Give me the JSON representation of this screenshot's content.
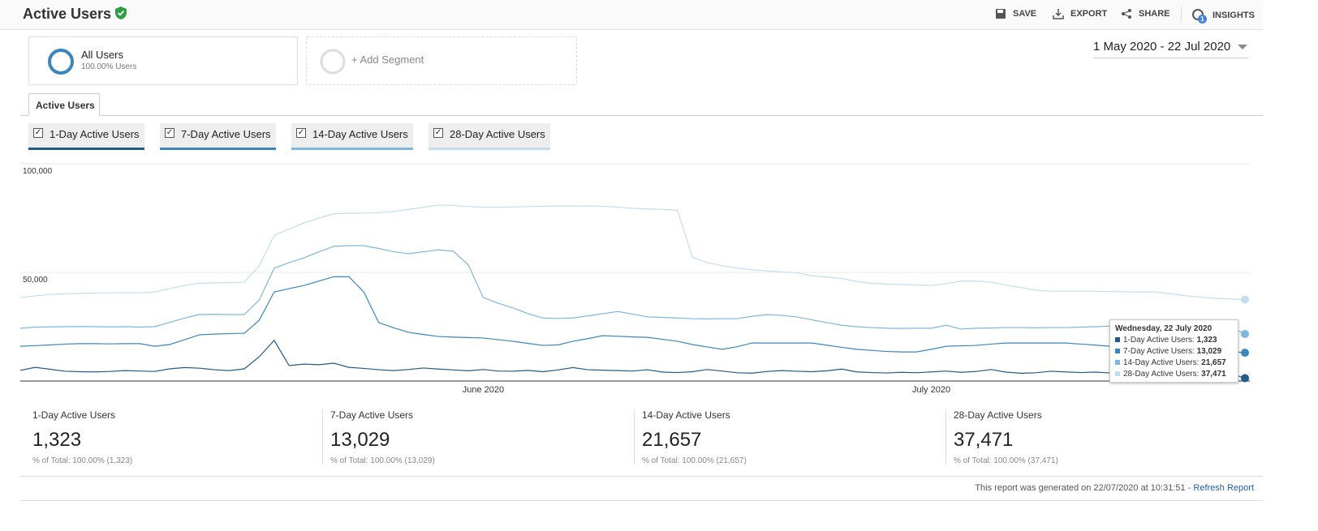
{
  "header": {
    "title": "Active Users",
    "actions": [
      "SAVE",
      "EXPORT",
      "SHARE",
      "INSIGHTS"
    ],
    "insights_badge": "1"
  },
  "segments": {
    "active": {
      "name": "All Users",
      "detail": "100.00% Users"
    },
    "add": "+ Add Segment"
  },
  "date_range": "1 May 2020 - 22 Jul 2020",
  "tab": "Active Users",
  "chart_data": {
    "type": "line",
    "categories": [
      null,
      null,
      null,
      null,
      null,
      null,
      null,
      null,
      null,
      null,
      null,
      null,
      null,
      null,
      null,
      null,
      null,
      null,
      null,
      null,
      null,
      null,
      null,
      null,
      null,
      null,
      null,
      null,
      null,
      null,
      null,
      "June 2020",
      null,
      null,
      null,
      null,
      null,
      null,
      null,
      null,
      null,
      null,
      null,
      null,
      null,
      null,
      null,
      null,
      null,
      null,
      null,
      null,
      null,
      null,
      null,
      null,
      null,
      null,
      null,
      null,
      null,
      "July 2020",
      null,
      null,
      null,
      null,
      null,
      null,
      null,
      null,
      null,
      null,
      null,
      null,
      null,
      null,
      null,
      null,
      null,
      null,
      null,
      null,
      null
    ],
    "ylim": [
      0,
      100000
    ],
    "yticks": [
      {
        "value": 50000,
        "label": "50,000"
      },
      {
        "value": 100000,
        "label": "100,000"
      }
    ],
    "grid": true,
    "series": [
      {
        "name": "1-Day Active Users",
        "color": "#245a87",
        "values": [
          4900,
          6300,
          5400,
          4500,
          4300,
          4200,
          4400,
          4800,
          4600,
          4400,
          5600,
          6200,
          5900,
          5200,
          4800,
          5600,
          11200,
          18700,
          7100,
          7800,
          7500,
          8200,
          6300,
          5800,
          5200,
          4800,
          5300,
          6000,
          5500,
          5100,
          4700,
          5300,
          4600,
          4500,
          4900,
          4300,
          5100,
          6200,
          5200,
          5000,
          4800,
          4600,
          5200,
          4100,
          3900,
          4300,
          5300,
          4600,
          3800,
          3600,
          4400,
          4800,
          4500,
          4300,
          4700,
          5500,
          4200,
          3900,
          3700,
          4000,
          3800,
          4200,
          4600,
          4000,
          4400,
          5300,
          4100,
          3600,
          3800,
          4500,
          4200,
          3900,
          4100,
          3700,
          3900,
          4300,
          4000,
          3800,
          3600,
          4100,
          3800,
          3500,
          1323
        ]
      },
      {
        "name": "7-Day Active Users",
        "color": "#3a86bd",
        "values": [
          16000,
          16300,
          16600,
          17000,
          17200,
          17200,
          17100,
          17200,
          17200,
          16000,
          16800,
          19000,
          21300,
          21600,
          21800,
          22000,
          28000,
          41000,
          42500,
          44000,
          46000,
          48000,
          48000,
          41000,
          26900,
          24500,
          22400,
          21400,
          20500,
          20200,
          20000,
          19800,
          19000,
          18300,
          17300,
          16400,
          16600,
          18300,
          19500,
          20900,
          20600,
          20300,
          20100,
          19200,
          18300,
          16800,
          15700,
          14600,
          15800,
          17500,
          17500,
          17500,
          17500,
          17500,
          16500,
          15500,
          14600,
          14100,
          13600,
          13400,
          13400,
          14600,
          16000,
          16200,
          16400,
          17000,
          17500,
          17500,
          17500,
          17500,
          17500,
          17000,
          16500,
          16000,
          15700,
          15400,
          15100,
          14900,
          14600,
          14300,
          14000,
          13700,
          13029
        ]
      },
      {
        "name": "14-Day Active Users",
        "color": "#7fb6de",
        "values": [
          24300,
          24800,
          24900,
          25000,
          25100,
          25000,
          24900,
          25000,
          24800,
          25000,
          27000,
          29000,
          30600,
          30700,
          30600,
          30600,
          37300,
          51900,
          54500,
          56700,
          59500,
          62000,
          62300,
          62300,
          61000,
          59500,
          58600,
          59500,
          60400,
          59700,
          53400,
          38400,
          35800,
          33600,
          31000,
          29000,
          28800,
          29000,
          30000,
          31000,
          32000,
          30800,
          29500,
          29300,
          29000,
          28700,
          28600,
          28700,
          28700,
          29800,
          30600,
          30200,
          29500,
          28200,
          26900,
          25700,
          25000,
          24600,
          24300,
          24200,
          24300,
          24300,
          25700,
          23900,
          24300,
          24400,
          24600,
          24600,
          24500,
          24600,
          24600,
          24800,
          25000,
          25300,
          25500,
          26000,
          26300,
          26500,
          26800,
          27200,
          27600,
          25000,
          21657
        ]
      },
      {
        "name": "28-Day Active Users",
        "color": "#c3def1",
        "values": [
          38400,
          39200,
          39800,
          40100,
          40300,
          40500,
          40600,
          40700,
          40600,
          41000,
          42500,
          44000,
          45000,
          45200,
          45300,
          45500,
          53000,
          67000,
          70000,
          72800,
          75000,
          77000,
          77200,
          77300,
          77500,
          78000,
          79000,
          80000,
          81000,
          80800,
          80300,
          80000,
          80000,
          80100,
          80300,
          80400,
          80600,
          80500,
          80600,
          80400,
          80000,
          79500,
          79200,
          79000,
          78600,
          57000,
          54500,
          53000,
          52000,
          51200,
          50700,
          50200,
          49800,
          48500,
          47800,
          47200,
          45800,
          45000,
          44600,
          44400,
          44200,
          44000,
          44800,
          46000,
          46000,
          45500,
          44200,
          43000,
          41800,
          41400,
          41300,
          41300,
          41300,
          41200,
          41100,
          41000,
          41000,
          40200,
          39300,
          38600,
          38000,
          37800,
          37471
        ]
      }
    ]
  },
  "tooltip": {
    "title": "Wednesday, 22 July 2020",
    "values": [
      "1,323",
      "13,029",
      "21,657",
      "37,471"
    ]
  },
  "scorecards": [
    {
      "value": "1,323",
      "total_label": "% of Total:",
      "total": "100.00% (1,323)"
    },
    {
      "value": "13,029",
      "total_label": "% of Total:",
      "total": "100.00% (13,029)"
    },
    {
      "value": "21,657",
      "total_label": "% of Total:",
      "total": "100.00% (21,657)"
    },
    {
      "value": "37,471",
      "total_label": "% of Total:",
      "total": "100.00% (37,471)"
    }
  ],
  "footer": {
    "text": "This report was generated on 22/07/2020 at 10:31:51 -",
    "link": "Refresh Report"
  }
}
